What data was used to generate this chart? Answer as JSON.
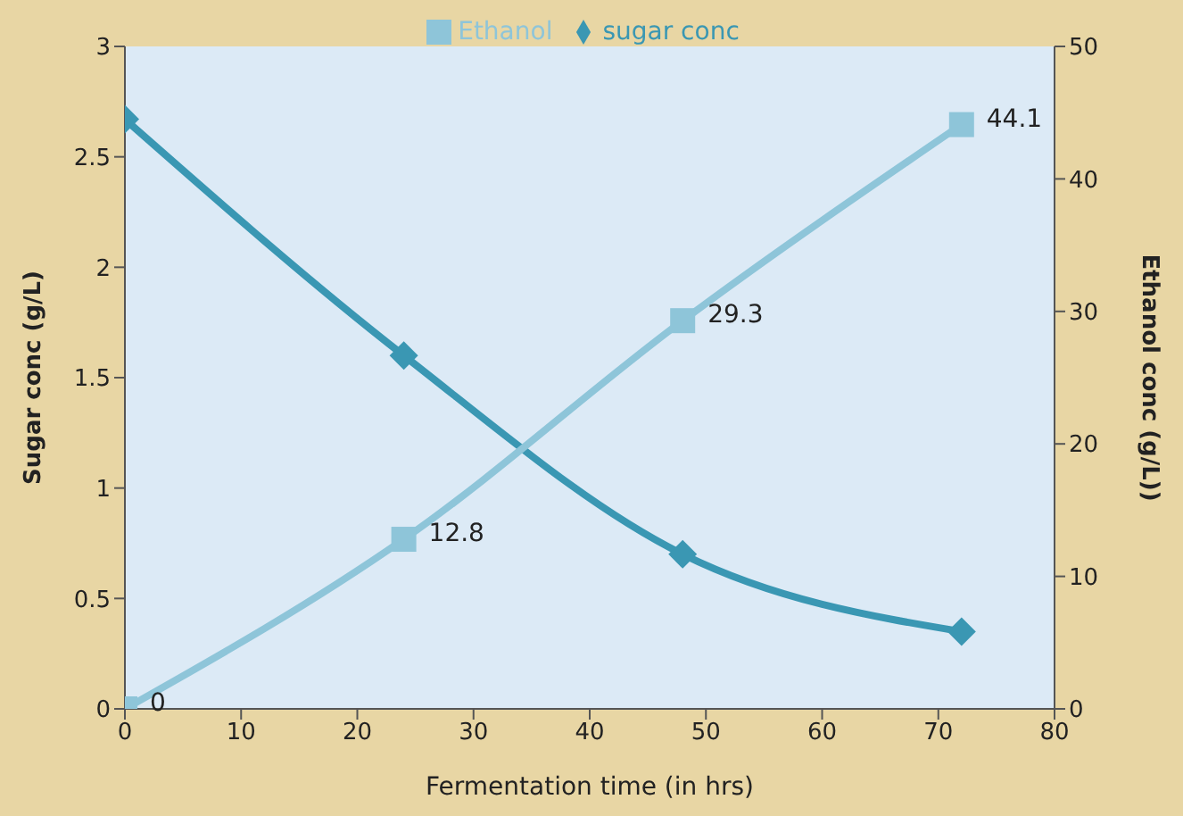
{
  "chart_data": {
    "type": "line",
    "xlabel": "Fermentation time (in hrs)",
    "ylabel": "Sugar conc (g/L)",
    "y2label": "Ethanol conc (g/L))",
    "x": [
      0,
      24,
      48,
      72
    ],
    "series": [
      {
        "name": "sugar conc",
        "color": "#3a97b3",
        "values": [
          2.67,
          1.6,
          0.7,
          0.35
        ],
        "marker": "diamond"
      },
      {
        "name": "Ethanol",
        "color": "#8ec5d9",
        "values": [
          0,
          12.8,
          29.3,
          44.1
        ],
        "marker": "square",
        "axis": "y2",
        "value_labels": [
          "0",
          "12.8",
          "29.3",
          "44.1"
        ]
      }
    ],
    "xlim": [
      0,
      80
    ],
    "xticks": [
      0,
      10,
      20,
      30,
      40,
      50,
      60,
      70,
      80
    ],
    "ylim": [
      0,
      3
    ],
    "yticks": [
      0,
      0.5,
      1,
      1.5,
      2,
      2.5,
      3
    ],
    "y2lim": [
      0,
      50
    ],
    "y2ticks": [
      0,
      10,
      20,
      30,
      40,
      50
    ],
    "grid": false,
    "legend": "top"
  }
}
